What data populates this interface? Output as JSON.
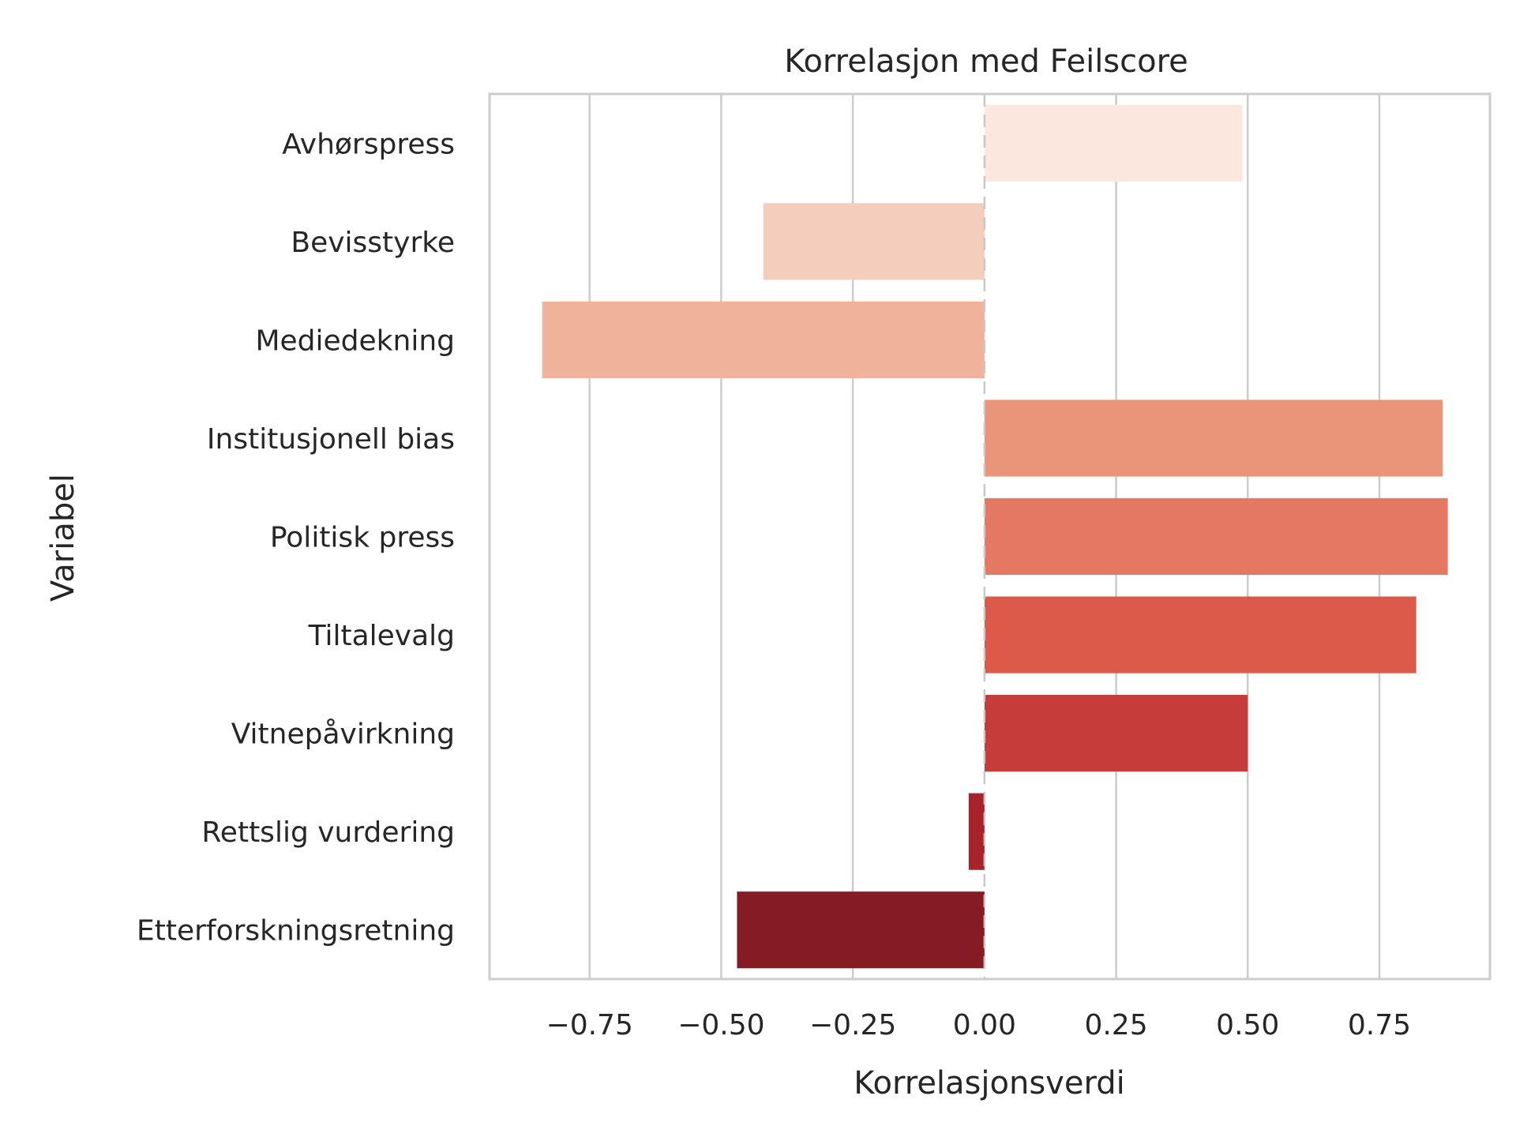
{
  "chart_data": {
    "type": "bar",
    "orientation": "horizontal",
    "title": "Korrelasjon med Feilscore",
    "xlabel": "Korrelasjonsverdi",
    "ylabel": "Variabel",
    "xlim": [
      -0.94,
      0.96
    ],
    "xticks": [
      -0.75,
      -0.5,
      -0.25,
      0.0,
      0.25,
      0.5,
      0.75
    ],
    "xtick_labels": [
      "−0.75",
      "−0.50",
      "−0.25",
      "0.00",
      "0.25",
      "0.50",
      "0.75"
    ],
    "grid": true,
    "categories": [
      "Avhørspress",
      "Bevisstyrke",
      "Mediedekning",
      "Institusjonell bias",
      "Politisk press",
      "Tiltalevalg",
      "Vitnepåvirkning",
      "Rettslig vurdering",
      "Etterforskningsretning"
    ],
    "values": [
      0.49,
      -0.42,
      -0.84,
      0.87,
      0.88,
      0.82,
      0.5,
      -0.03,
      -0.47
    ],
    "colors": [
      "#fbe7de",
      "#f5cdbd",
      "#f0b29b",
      "#ea957a",
      "#e57862",
      "#dc5a4a",
      "#c53c3a",
      "#a82229",
      "#861c23"
    ]
  }
}
